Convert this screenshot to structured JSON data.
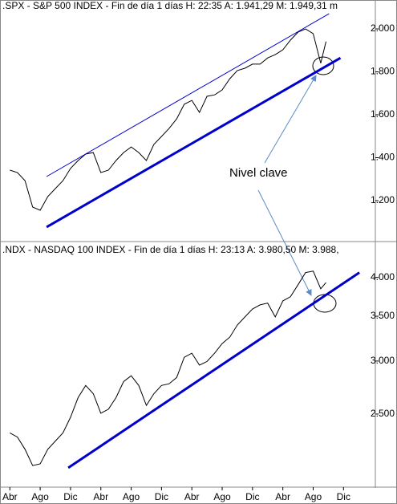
{
  "chart_data": [
    {
      "type": "line",
      "title": ".SPX - S&P 500 INDEX - Fin de día 1 días H: 22:35 A: 1.941,29 M: 1.949,31 m",
      "annotation": "Nivel clave",
      "xlim": [
        -1.3,
        48.2
      ],
      "ylim": [
        1013,
        2075
      ],
      "yticks": [
        {
          "value": 2000,
          "label": "2.000"
        },
        {
          "value": 1800,
          "label": "1.800"
        },
        {
          "value": 1600,
          "label": "1.600"
        },
        {
          "value": 1400,
          "label": "1.400"
        },
        {
          "value": 1200,
          "label": "1.200"
        }
      ],
      "series": [
        {
          "color": "#000000",
          "width": 1,
          "x": [
            0,
            1,
            2,
            3,
            4,
            5,
            6,
            7,
            8,
            9,
            10,
            11,
            12,
            13,
            14,
            15,
            16,
            17,
            18,
            19,
            20,
            21,
            22,
            23,
            24,
            25,
            26,
            27,
            28,
            29,
            30,
            31,
            32,
            33,
            34,
            35,
            36,
            37,
            38,
            39,
            40,
            41,
            41.7
          ],
          "values": [
            1342,
            1331,
            1293,
            1170,
            1155,
            1219,
            1256,
            1293,
            1350,
            1387,
            1417,
            1424,
            1331,
            1342,
            1387,
            1424,
            1450,
            1424,
            1387,
            1462,
            1499,
            1536,
            1581,
            1649,
            1667,
            1611,
            1686,
            1693,
            1716,
            1768,
            1806,
            1817,
            1836,
            1836,
            1865,
            1880,
            1903,
            1948,
            1985,
            2000,
            1978,
            1840,
            1941
          ]
        },
        {
          "color": "#0000cc",
          "width": 1,
          "x": [
            4.84,
            42.1
          ],
          "values": [
            1312,
            2071
          ]
        },
        {
          "color": "#0000cc",
          "width": 3,
          "x": [
            4.84,
            43.6
          ],
          "values": [
            1077,
            1865
          ]
        }
      ]
    },
    {
      "type": "line",
      "title": ".NDX - NASDAQ 100 INDEX - Fin de día 1 días H: 23:13 A: 3.980,50 M: 3.988,",
      "xlim": [
        -1.3,
        48.2
      ],
      "ylim": [
        1955,
        4270
      ],
      "log_y": true,
      "yticks": [
        {
          "value": 4000,
          "label": "4.000"
        },
        {
          "value": 3500,
          "label": "3.500"
        },
        {
          "value": 3000,
          "label": "3.000"
        },
        {
          "value": 2500,
          "label": "2.500"
        }
      ],
      "xticks": [
        {
          "value": 0,
          "label": "Abr"
        },
        {
          "value": 4,
          "label": "Ago"
        },
        {
          "value": 8,
          "label": "Dic"
        },
        {
          "value": 12,
          "label": "Abr"
        },
        {
          "value": 16,
          "label": "Ago"
        },
        {
          "value": 20,
          "label": "Dic"
        },
        {
          "value": 24,
          "label": "Abr"
        },
        {
          "value": 28,
          "label": "Ago"
        },
        {
          "value": 32,
          "label": "Dic"
        },
        {
          "value": 36,
          "label": "Abr"
        },
        {
          "value": 40,
          "label": "Ago"
        },
        {
          "value": 44,
          "label": "Dic"
        }
      ],
      "series": [
        {
          "color": "#000000",
          "width": 1,
          "x": [
            0,
            1,
            2,
            3,
            4,
            5,
            6,
            7,
            8,
            9,
            10,
            11,
            12,
            13,
            14,
            15,
            16,
            17,
            18,
            19,
            20,
            21,
            22,
            23,
            24,
            25,
            26,
            27,
            28,
            29,
            30,
            31,
            32,
            33,
            34,
            35,
            36,
            37,
            38,
            39,
            40,
            41,
            41.7
          ],
          "values": [
            2343,
            2310,
            2215,
            2094,
            2106,
            2215,
            2278,
            2343,
            2472,
            2646,
            2758,
            2682,
            2507,
            2542,
            2646,
            2795,
            2852,
            2758,
            2575,
            2682,
            2758,
            2774,
            2835,
            3039,
            3082,
            2958,
            2996,
            3082,
            3186,
            3257,
            3396,
            3492,
            3588,
            3639,
            3661,
            3492,
            3690,
            3742,
            3900,
            4067,
            4088,
            3847,
            3930
          ]
        },
        {
          "color": "#0000cc",
          "width": 3,
          "x": [
            7.7,
            46.1
          ],
          "values": [
            2078,
            4067
          ]
        }
      ]
    }
  ]
}
